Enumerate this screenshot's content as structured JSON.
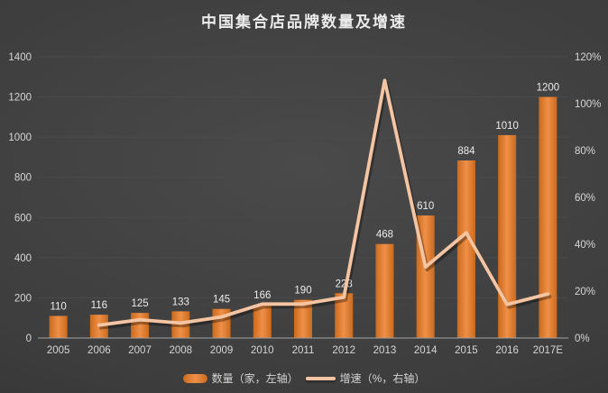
{
  "title": "中国集合店品牌数量及增速",
  "colors": {
    "background_center": "#4a4a4a",
    "background_edge": "#2c2c2c",
    "bar_edge": "#c96a1d",
    "bar_center": "#f09048",
    "line": "#f5c5a3",
    "grid": "#4b4b4b",
    "axis_line": "#a3a3a3",
    "axis_text": "#d6d6d6",
    "bar_label_text": "#ececec",
    "title_text": "#ececec"
  },
  "chart_data": {
    "type": "bar",
    "subtype": "bar+line combo, dual axis",
    "title": "中国集合店品牌数量及增速",
    "categories": [
      "2005",
      "2006",
      "2007",
      "2008",
      "2009",
      "2010",
      "2011",
      "2012",
      "2013",
      "2014",
      "2015",
      "2016",
      "2017E"
    ],
    "series": [
      {
        "name": "数量（家，左轴）",
        "type": "bar",
        "axis": "left",
        "values": [
          110,
          116,
          125,
          133,
          145,
          166,
          190,
          223,
          468,
          610,
          884,
          1010,
          1200
        ],
        "labels": [
          "110",
          "116",
          "125",
          "133",
          "145",
          "166",
          "190",
          "223",
          "468",
          "610",
          "884",
          "1010",
          "1200"
        ]
      },
      {
        "name": "增速（%，右轴）",
        "type": "line",
        "axis": "right",
        "values_pct": [
          null,
          5.5,
          7.8,
          6.4,
          9.0,
          14.5,
          14.5,
          17.4,
          109.9,
          30.3,
          44.9,
          14.3,
          18.8
        ]
      }
    ],
    "left_axis": {
      "min": 0,
      "max": 1400,
      "step": 200,
      "ticks": [
        "0",
        "200",
        "400",
        "600",
        "800",
        "1000",
        "1200",
        "1400"
      ]
    },
    "right_axis": {
      "min": 0,
      "max": 120,
      "step": 20,
      "ticks": [
        "0%",
        "20%",
        "40%",
        "60%",
        "80%",
        "100%",
        "120%"
      ]
    },
    "grid": "horizontal, primary axis",
    "legend_position": "bottom"
  }
}
